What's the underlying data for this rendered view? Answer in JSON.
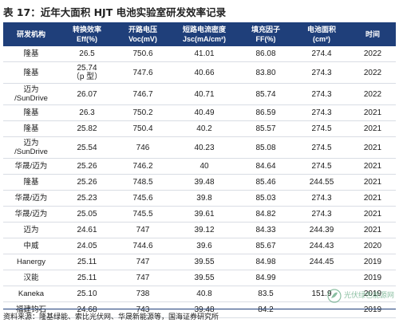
{
  "title": "表 17：近年大面积 HJT 电池实验室研发效率记录",
  "headers": [
    [
      "研发机构",
      ""
    ],
    [
      "转换效率",
      "Eff(%)"
    ],
    [
      "开路电压",
      "Voc(mV)"
    ],
    [
      "短路电流密度",
      "Jsc(mA/cm²)"
    ],
    [
      "填充因子",
      "FF(%)"
    ],
    [
      "电池面积",
      "(cm²)"
    ],
    [
      "时间",
      ""
    ]
  ],
  "rows": [
    {
      "inst": "隆基",
      "eff": "26.5",
      "voc": "750.6",
      "jsc": "41.01",
      "ff": "86.08",
      "area": "274.4",
      "year": "2022"
    },
    {
      "inst": "隆基",
      "eff": "25.74\n（p 型）",
      "voc": "747.6",
      "jsc": "40.66",
      "ff": "83.80",
      "area": "274.3",
      "year": "2022"
    },
    {
      "inst": "迈为\n/SunDrive",
      "eff": "26.07",
      "voc": "746.7",
      "jsc": "40.71",
      "ff": "85.74",
      "area": "274.3",
      "year": "2022"
    },
    {
      "inst": "隆基",
      "eff": "26.3",
      "voc": "750.2",
      "jsc": "40.49",
      "ff": "86.59",
      "area": "274.3",
      "year": "2021"
    },
    {
      "inst": "隆基",
      "eff": "25.82",
      "voc": "750.4",
      "jsc": "40.2",
      "ff": "85.57",
      "area": "274.5",
      "year": "2021"
    },
    {
      "inst": "迈为\n/SunDrive",
      "eff": "25.54",
      "voc": "746",
      "jsc": "40.23",
      "ff": "85.08",
      "area": "274.5",
      "year": "2021"
    },
    {
      "inst": "华晟/迈为",
      "eff": "25.26",
      "voc": "746.2",
      "jsc": "40",
      "ff": "84.64",
      "area": "274.5",
      "year": "2021"
    },
    {
      "inst": "隆基",
      "eff": "25.26",
      "voc": "748.5",
      "jsc": "39.48",
      "ff": "85.46",
      "area": "244.55",
      "year": "2021"
    },
    {
      "inst": "华晟/迈为",
      "eff": "25.23",
      "voc": "745.6",
      "jsc": "39.8",
      "ff": "85.03",
      "area": "274.3",
      "year": "2021"
    },
    {
      "inst": "华晟/迈为",
      "eff": "25.05",
      "voc": "745.5",
      "jsc": "39.61",
      "ff": "84.82",
      "area": "274.3",
      "year": "2021"
    },
    {
      "inst": "迈为",
      "eff": "24.61",
      "voc": "747",
      "jsc": "39.12",
      "ff": "84.33",
      "area": "244.39",
      "year": "2021"
    },
    {
      "inst": "中威",
      "eff": "24.05",
      "voc": "744.6",
      "jsc": "39.6",
      "ff": "85.67",
      "area": "244.43",
      "year": "2020"
    },
    {
      "inst": "Hanergy",
      "eff": "25.11",
      "voc": "747",
      "jsc": "39.55",
      "ff": "84.98",
      "area": "244.45",
      "year": "2019"
    },
    {
      "inst": "汉能",
      "eff": "25.11",
      "voc": "747",
      "jsc": "39.55",
      "ff": "84.99",
      "area": "",
      "year": "2019"
    },
    {
      "inst": "Kaneka",
      "eff": "25.10",
      "voc": "738",
      "jsc": "40.8",
      "ff": "83.5",
      "area": "151.9",
      "year": "2019"
    },
    {
      "inst": "福建钧石",
      "eff": "24.68",
      "voc": "743",
      "jsc": "39.48",
      "ff": "84.2",
      "area": "",
      "year": "2019"
    }
  ],
  "source": "资料来源：隆基绿能、索比光伏网、华晟新能源等，国海证券研究所",
  "watermark": {
    "text_cn": "光伏绿色能源网"
  }
}
